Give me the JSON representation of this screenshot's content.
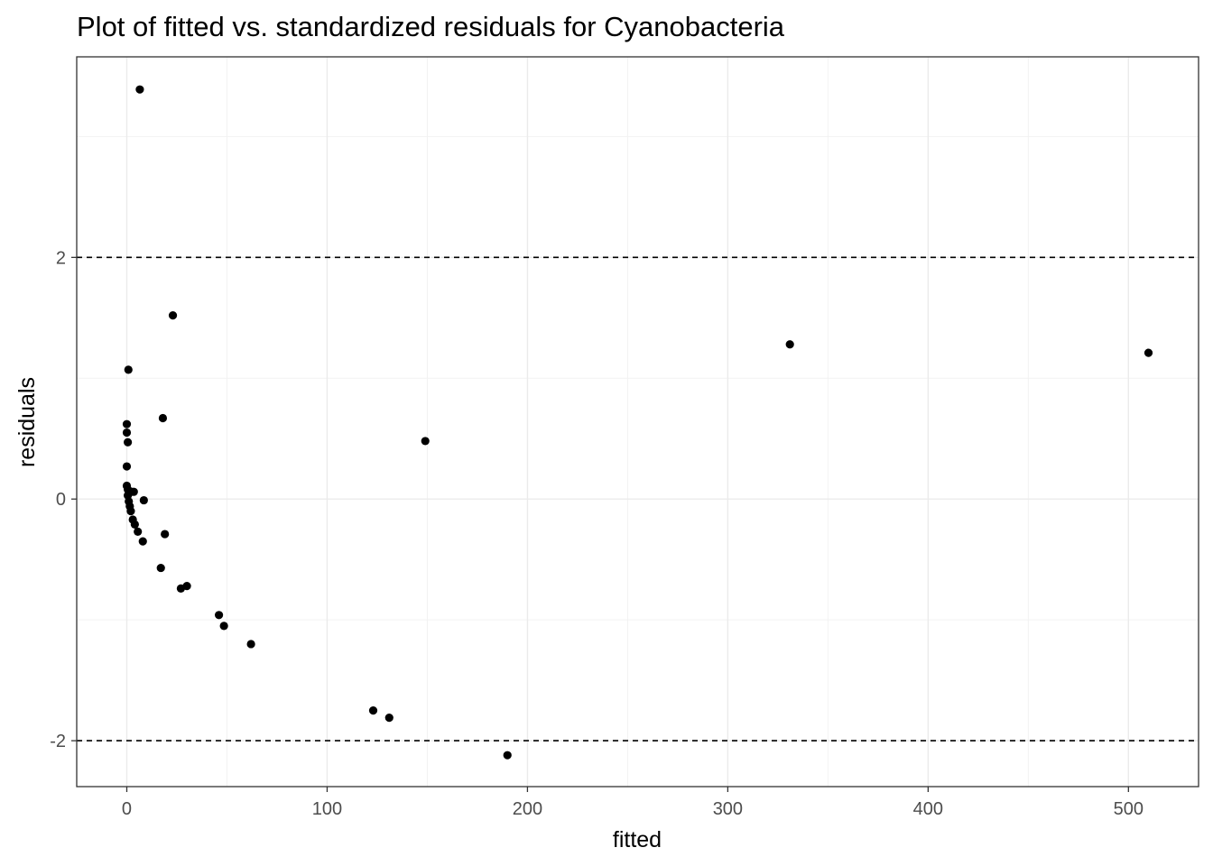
{
  "chart_data": {
    "type": "scatter",
    "title": "Plot of fitted vs. standardized residuals for Cyanobacteria",
    "xlabel": "fitted",
    "ylabel": "residuals",
    "xlim": [
      -25,
      535
    ],
    "ylim": [
      -2.38,
      3.66
    ],
    "x_ticks": [
      0,
      100,
      200,
      300,
      400,
      500
    ],
    "x_tick_labels": [
      "0",
      "100",
      "200",
      "300",
      "400",
      "500"
    ],
    "y_ticks": [
      -2,
      0,
      2
    ],
    "y_tick_labels": [
      "-2",
      "0",
      "2"
    ],
    "grid": true,
    "reference_lines_y": [
      -2,
      2
    ],
    "point_color": "#000000",
    "points": [
      {
        "x": 6.5,
        "y": 3.39
      },
      {
        "x": 23,
        "y": 1.52
      },
      {
        "x": 0.8,
        "y": 1.07
      },
      {
        "x": 18,
        "y": 0.67
      },
      {
        "x": 0,
        "y": 0.62
      },
      {
        "x": 0,
        "y": 0.55
      },
      {
        "x": 0.5,
        "y": 0.47
      },
      {
        "x": 0,
        "y": 0.27
      },
      {
        "x": 0,
        "y": 0.11
      },
      {
        "x": 0.5,
        "y": 0.08
      },
      {
        "x": 2.5,
        "y": 0.06
      },
      {
        "x": 3.5,
        "y": 0.06
      },
      {
        "x": 0.5,
        "y": 0.03
      },
      {
        "x": 1,
        "y": -0.02
      },
      {
        "x": 8.5,
        "y": -0.01
      },
      {
        "x": 1.5,
        "y": -0.06
      },
      {
        "x": 2,
        "y": -0.1
      },
      {
        "x": 3,
        "y": -0.17
      },
      {
        "x": 4,
        "y": -0.21
      },
      {
        "x": 5.5,
        "y": -0.27
      },
      {
        "x": 19,
        "y": -0.29
      },
      {
        "x": 8,
        "y": -0.35
      },
      {
        "x": 17,
        "y": -0.57
      },
      {
        "x": 30,
        "y": -0.72
      },
      {
        "x": 27,
        "y": -0.74
      },
      {
        "x": 46,
        "y": -0.96
      },
      {
        "x": 48.5,
        "y": -1.05
      },
      {
        "x": 62,
        "y": -1.2
      },
      {
        "x": 123,
        "y": -1.75
      },
      {
        "x": 131,
        "y": -1.81
      },
      {
        "x": 190,
        "y": -2.12
      },
      {
        "x": 149,
        "y": 0.48
      },
      {
        "x": 331,
        "y": 1.28
      },
      {
        "x": 510,
        "y": 1.21
      }
    ]
  }
}
